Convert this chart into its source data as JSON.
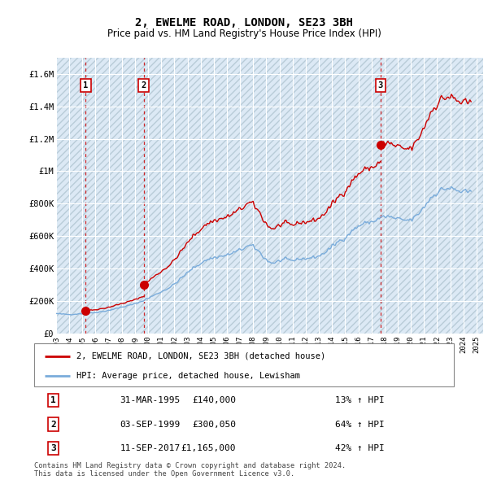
{
  "title": "2, EWELME ROAD, LONDON, SE23 3BH",
  "subtitle": "Price paid vs. HM Land Registry's House Price Index (HPI)",
  "plot_bg_color": "#dce9f5",
  "grid_color": "#ffffff",
  "ylim": [
    0,
    1700000
  ],
  "yticks": [
    0,
    200000,
    400000,
    600000,
    800000,
    1000000,
    1200000,
    1400000,
    1600000
  ],
  "ytick_labels": [
    "£0",
    "£200K",
    "£400K",
    "£600K",
    "£800K",
    "£1M",
    "£1.2M",
    "£1.4M",
    "£1.6M"
  ],
  "xlim_start": 1993.0,
  "xlim_end": 2025.5,
  "sale_color": "#cc0000",
  "hpi_color": "#7aacdb",
  "sale_label": "2, EWELME ROAD, LONDON, SE23 3BH (detached house)",
  "hpi_label": "HPI: Average price, detached house, Lewisham",
  "transactions": [
    {
      "num": 1,
      "date": "31-MAR-1995",
      "year": 1995.25,
      "price": 140000,
      "pct": "13%",
      "dir": "↑"
    },
    {
      "num": 2,
      "date": "03-SEP-1999",
      "year": 1999.67,
      "price": 300050,
      "pct": "64%",
      "dir": "↑"
    },
    {
      "num": 3,
      "date": "11-SEP-2017",
      "year": 2017.69,
      "price": 1165000,
      "pct": "42%",
      "dir": "↑"
    }
  ],
  "footnote": "Contains HM Land Registry data © Crown copyright and database right 2024.\nThis data is licensed under the Open Government Licence v3.0.",
  "hpi_quarterly": [
    1993.0,
    1993.25,
    1993.5,
    1993.75,
    1994.0,
    1994.25,
    1994.5,
    1994.75,
    1995.0,
    1995.25,
    1995.5,
    1995.75,
    1996.0,
    1996.25,
    1996.5,
    1996.75,
    1997.0,
    1997.25,
    1997.5,
    1997.75,
    1998.0,
    1998.25,
    1998.5,
    1998.75,
    1999.0,
    1999.25,
    1999.5,
    1999.75,
    2000.0,
    2000.25,
    2000.5,
    2000.75,
    2001.0,
    2001.25,
    2001.5,
    2001.75,
    2002.0,
    2002.25,
    2002.5,
    2002.75,
    2003.0,
    2003.25,
    2003.5,
    2003.75,
    2004.0,
    2004.25,
    2004.5,
    2004.75,
    2005.0,
    2005.25,
    2005.5,
    2005.75,
    2006.0,
    2006.25,
    2006.5,
    2006.75,
    2007.0,
    2007.25,
    2007.5,
    2007.75,
    2008.0,
    2008.25,
    2008.5,
    2008.75,
    2009.0,
    2009.25,
    2009.5,
    2009.75,
    2010.0,
    2010.25,
    2010.5,
    2010.75,
    2011.0,
    2011.25,
    2011.5,
    2011.75,
    2012.0,
    2012.25,
    2012.5,
    2012.75,
    2013.0,
    2013.25,
    2013.5,
    2013.75,
    2014.0,
    2014.25,
    2014.5,
    2014.75,
    2015.0,
    2015.25,
    2015.5,
    2015.75,
    2016.0,
    2016.25,
    2016.5,
    2016.75,
    2017.0,
    2017.25,
    2017.5,
    2017.75,
    2018.0,
    2018.25,
    2018.5,
    2018.75,
    2019.0,
    2019.25,
    2019.5,
    2019.75,
    2020.0,
    2020.25,
    2020.5,
    2020.75,
    2021.0,
    2021.25,
    2021.5,
    2021.75,
    2022.0,
    2022.25,
    2022.5,
    2022.75,
    2023.0,
    2023.25,
    2023.5,
    2023.75,
    2024.0,
    2024.25,
    2024.5
  ],
  "hpi_q_values": [
    123000,
    122000,
    120000,
    119000,
    118000,
    119000,
    120000,
    122000,
    123000,
    124000,
    126000,
    128000,
    130000,
    133000,
    136000,
    139000,
    143000,
    148000,
    153000,
    158000,
    163000,
    168000,
    173000,
    178000,
    184000,
    191000,
    199000,
    208000,
    218000,
    228000,
    238000,
    248000,
    258000,
    268000,
    278000,
    290000,
    305000,
    322000,
    340000,
    358000,
    375000,
    392000,
    408000,
    420000,
    432000,
    445000,
    455000,
    462000,
    468000,
    472000,
    475000,
    478000,
    483000,
    490000,
    498000,
    506000,
    515000,
    525000,
    535000,
    540000,
    535000,
    520000,
    500000,
    475000,
    455000,
    440000,
    435000,
    440000,
    448000,
    455000,
    455000,
    452000,
    450000,
    455000,
    460000,
    462000,
    462000,
    465000,
    468000,
    472000,
    478000,
    488000,
    502000,
    518000,
    535000,
    552000,
    568000,
    580000,
    592000,
    610000,
    630000,
    648000,
    660000,
    672000,
    680000,
    685000,
    688000,
    695000,
    705000,
    715000,
    720000,
    720000,
    715000,
    710000,
    705000,
    700000,
    698000,
    698000,
    700000,
    712000,
    730000,
    755000,
    780000,
    808000,
    835000,
    855000,
    870000,
    882000,
    890000,
    895000,
    893000,
    888000,
    880000,
    875000,
    870000,
    868000,
    868000
  ]
}
